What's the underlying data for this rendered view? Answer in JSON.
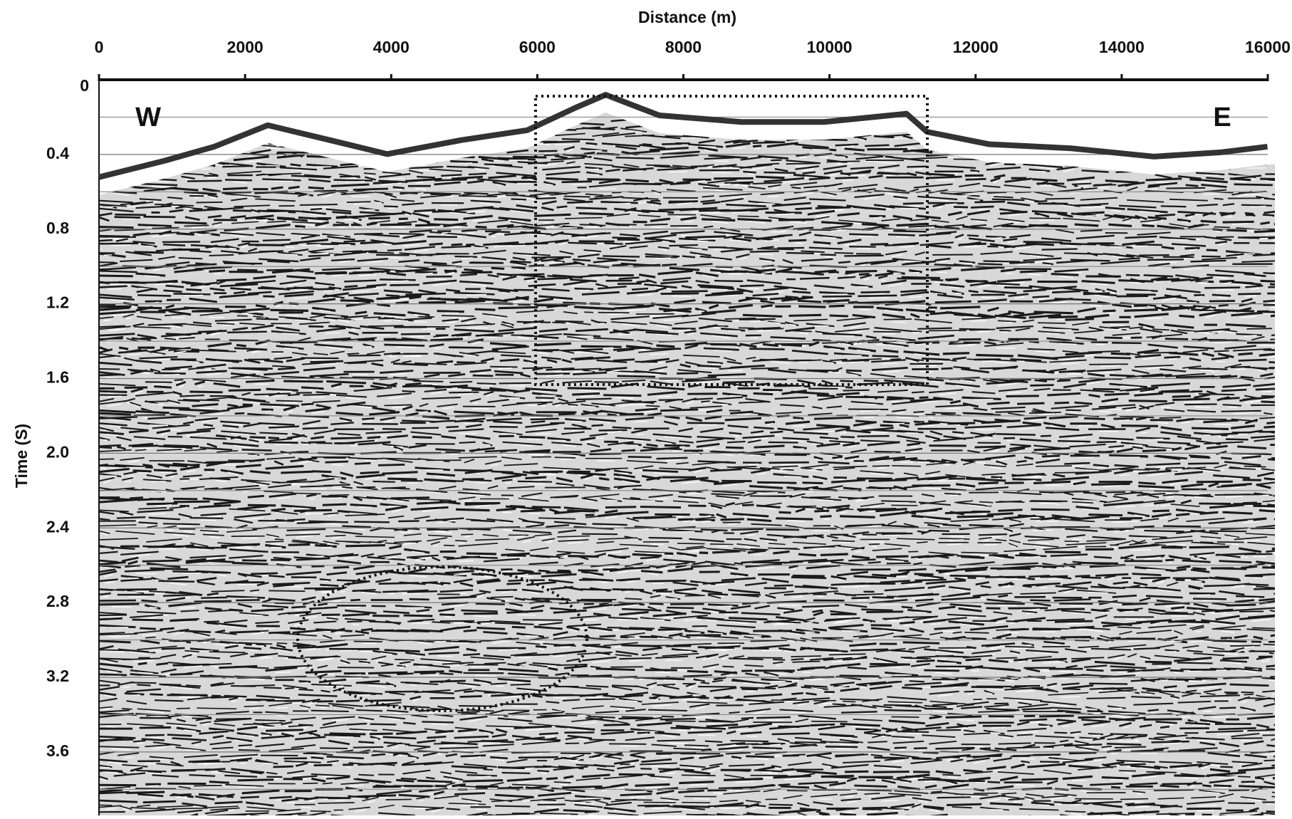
{
  "chart_data": {
    "type": "seismic-section",
    "x_label": "Distance (m)",
    "y_label": "Time (S)",
    "xlim": [
      0,
      16000
    ],
    "xticks": [
      0,
      2000,
      4000,
      6000,
      8000,
      10000,
      12000,
      14000,
      16000
    ],
    "ylim": [
      0,
      3.94
    ],
    "yticks": [
      0,
      0.4,
      0.8,
      1.2,
      1.6,
      {
        "value": 2,
        "label": "2.0"
      },
      2.4,
      2.8,
      3.2,
      3.6
    ],
    "yminorticks": [
      0.2,
      0.6,
      1,
      1.4,
      1.8,
      2.2,
      2.6,
      3,
      3.4,
      3.8
    ],
    "grid": true,
    "annotations": [
      "W",
      "E"
    ]
  }
}
